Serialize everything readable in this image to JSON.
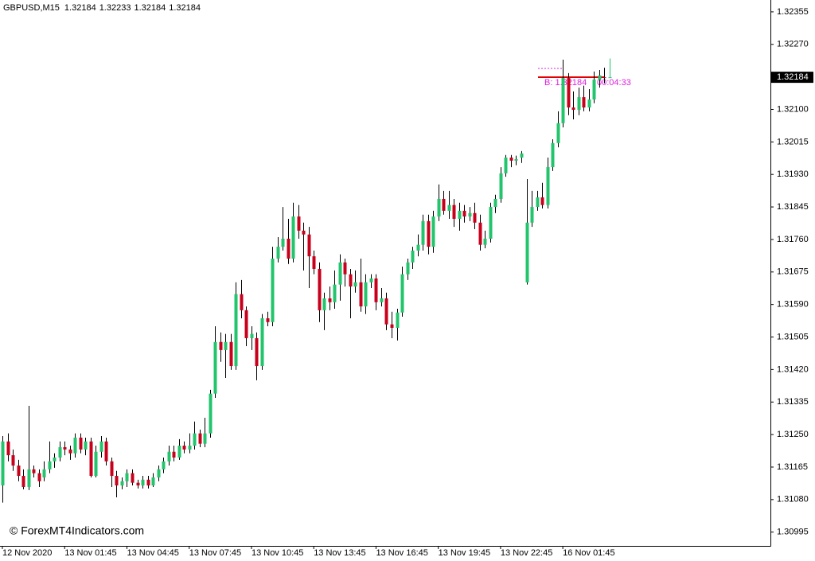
{
  "chart_data": {
    "type": "candlestick",
    "symbol": "GBPUSD,M15",
    "categories": [
      "12 Nov 2020",
      null,
      null,
      null,
      null,
      null,
      null,
      null,
      null,
      null,
      null,
      null,
      "13 Nov 01:45",
      null,
      null,
      null,
      null,
      null,
      null,
      null,
      null,
      null,
      null,
      null,
      "13 Nov 04:45",
      null,
      null,
      null,
      null,
      null,
      null,
      null,
      null,
      null,
      null,
      null,
      "13 Nov 07:45",
      null,
      null,
      null,
      null,
      null,
      null,
      null,
      null,
      null,
      null,
      null,
      "13 Nov 10:45",
      null,
      null,
      null,
      null,
      null,
      null,
      null,
      null,
      null,
      null,
      null,
      "13 Nov 13:45",
      null,
      null,
      null,
      null,
      null,
      null,
      null,
      null,
      null,
      null,
      null,
      "13 Nov 16:45",
      null,
      null,
      null,
      null,
      null,
      null,
      null,
      null,
      null,
      null,
      null,
      "13 Nov 19:45",
      null,
      null,
      null,
      null,
      null,
      null,
      null,
      null,
      null,
      null,
      null,
      "13 Nov 22:45",
      null,
      null,
      null,
      null,
      null,
      null,
      null,
      null,
      null,
      null,
      null,
      "16 Nov 01:45",
      null,
      null,
      null,
      null,
      null,
      null,
      null,
      null,
      null
    ],
    "open": [
      1.31117,
      1.31232,
      1.31196,
      1.31169,
      1.31142,
      1.31113,
      1.31159,
      1.31149,
      1.31138,
      1.31159,
      1.3118,
      1.3119,
      1.31217,
      1.31211,
      1.31201,
      1.31242,
      1.31211,
      1.31232,
      1.31142,
      1.31205,
      1.31232,
      1.3118,
      1.31142,
      1.31117,
      1.31128,
      1.31149,
      1.31124,
      1.31117,
      1.31132,
      1.31117,
      1.31138,
      1.31159,
      1.3118,
      1.31205,
      1.3119,
      1.31221,
      1.31211,
      1.31221,
      1.31253,
      1.31226,
      1.31253,
      1.31357,
      1.31492,
      1.31471,
      1.31492,
      1.31429,
      1.31617,
      1.31575,
      1.31502,
      1.31502,
      1.31429,
      1.31554,
      1.31544,
      1.3171,
      1.31741,
      1.31762,
      1.3171,
      1.3182,
      1.31783,
      1.31773,
      1.31716,
      1.31683,
      1.31575,
      1.31606,
      1.31596,
      1.31642,
      1.317,
      1.31669,
      1.31637,
      1.31648,
      1.31585,
      1.31648,
      1.31658,
      1.31596,
      1.31606,
      1.31538,
      1.31529,
      1.31569,
      1.31669,
      1.317,
      1.31731,
      1.31746,
      1.31808,
      1.31741,
      1.3182,
      1.31866,
      1.31835,
      1.3185,
      1.31814,
      1.31835,
      1.3182,
      1.31829,
      1.31804,
      1.31746,
      1.31762,
      1.31845,
      1.31866,
      1.31933,
      1.31974,
      1.31966,
      1.31974,
      1.31648,
      1.31804,
      1.31845,
      1.3187,
      1.3185,
      1.31949,
      1.32012,
      1.32064,
      1.32182,
      1.32105,
      1.32099,
      1.32132,
      1.32105,
      1.32126,
      1.32178,
      1.32184,
      1.32184
    ],
    "high": [
      1.31246,
      1.31253,
      1.31211,
      1.31184,
      1.31159,
      1.31325,
      1.31169,
      1.31159,
      1.3118,
      1.31232,
      1.31201,
      1.31232,
      1.31232,
      1.31221,
      1.31253,
      1.31253,
      1.31242,
      1.31242,
      1.31221,
      1.31246,
      1.31242,
      1.3119,
      1.31155,
      1.31138,
      1.31159,
      1.31159,
      1.31132,
      1.31142,
      1.31142,
      1.31149,
      1.31169,
      1.3119,
      1.31221,
      1.31221,
      1.31238,
      1.31232,
      1.31253,
      1.31284,
      1.31263,
      1.31294,
      1.31367,
      1.31533,
      1.31517,
      1.31513,
      1.31513,
      1.31648,
      1.31654,
      1.31585,
      1.31533,
      1.31517,
      1.31565,
      1.31571,
      1.31741,
      1.31766,
      1.31845,
      1.31814,
      1.31856,
      1.3185,
      1.31804,
      1.31793,
      1.31731,
      1.317,
      1.31621,
      1.31637,
      1.31679,
      1.31721,
      1.3171,
      1.31683,
      1.31679,
      1.3171,
      1.31669,
      1.31669,
      1.31669,
      1.31633,
      1.31621,
      1.31571,
      1.31579,
      1.31689,
      1.3171,
      1.31741,
      1.31773,
      1.31825,
      1.31825,
      1.31835,
      1.31904,
      1.31887,
      1.31887,
      1.31866,
      1.31856,
      1.3185,
      1.31845,
      1.31856,
      1.31825,
      1.31783,
      1.31856,
      1.31877,
      1.31949,
      1.31981,
      1.31981,
      1.31979,
      1.31991,
      1.31918,
      1.31887,
      1.31887,
      1.31908,
      1.31974,
      1.32022,
      1.32095,
      1.3223,
      1.32195,
      1.32147,
      1.32157,
      1.32162,
      1.32153,
      1.32199,
      1.32203,
      1.32209,
      1.32233
    ],
    "low": [
      1.31072,
      1.3118,
      1.31155,
      1.31128,
      1.31107,
      1.31105,
      1.31138,
      1.31113,
      1.31128,
      1.31149,
      1.31163,
      1.3118,
      1.31196,
      1.31184,
      1.3119,
      1.31201,
      1.31196,
      1.31138,
      1.31138,
      1.3119,
      1.31169,
      1.31113,
      1.31086,
      1.31107,
      1.31113,
      1.31117,
      1.31109,
      1.31109,
      1.31109,
      1.31113,
      1.31128,
      1.31149,
      1.31169,
      1.3118,
      1.31184,
      1.31201,
      1.31201,
      1.31211,
      1.31217,
      1.31217,
      1.31242,
      1.31346,
      1.3144,
      1.31398,
      1.31419,
      1.31419,
      1.31554,
      1.31481,
      1.31471,
      1.31392,
      1.31419,
      1.31533,
      1.31533,
      1.317,
      1.31731,
      1.31696,
      1.317,
      1.31762,
      1.31679,
      1.31633,
      1.31669,
      1.31544,
      1.31523,
      1.31575,
      1.31579,
      1.316,
      1.31637,
      1.31554,
      1.31621,
      1.31571,
      1.31565,
      1.31633,
      1.31575,
      1.31585,
      1.31523,
      1.31502,
      1.31496,
      1.31558,
      1.31654,
      1.31683,
      1.31716,
      1.31731,
      1.31721,
      1.31725,
      1.31808,
      1.31825,
      1.31814,
      1.31793,
      1.31783,
      1.31804,
      1.31808,
      1.31787,
      1.31731,
      1.31737,
      1.31752,
      1.31829,
      1.31856,
      1.31924,
      1.31949,
      1.31954,
      1.3196,
      1.31642,
      1.31793,
      1.31835,
      1.31841,
      1.31841,
      1.31939,
      1.32001,
      1.32053,
      1.32085,
      1.32074,
      1.32085,
      1.32095,
      1.32095,
      1.32116,
      1.32157,
      1.32168,
      1.32184
    ],
    "close": [
      1.31232,
      1.31196,
      1.31169,
      1.31142,
      1.31113,
      1.31159,
      1.31149,
      1.31128,
      1.31159,
      1.3118,
      1.3119,
      1.31217,
      1.31211,
      1.31201,
      1.31242,
      1.31211,
      1.31232,
      1.31142,
      1.31205,
      1.31232,
      1.3118,
      1.31142,
      1.31117,
      1.31128,
      1.31149,
      1.31124,
      1.31117,
      1.31132,
      1.31117,
      1.31138,
      1.31159,
      1.3118,
      1.31205,
      1.3119,
      1.31221,
      1.31211,
      1.31221,
      1.31253,
      1.31226,
      1.31253,
      1.31357,
      1.31492,
      1.31471,
      1.31492,
      1.31429,
      1.31617,
      1.31575,
      1.31502,
      1.31513,
      1.31429,
      1.31554,
      1.31544,
      1.3171,
      1.31741,
      1.31762,
      1.3171,
      1.3182,
      1.31783,
      1.31773,
      1.31716,
      1.31683,
      1.31575,
      1.31606,
      1.31596,
      1.31642,
      1.317,
      1.31669,
      1.31637,
      1.31648,
      1.31585,
      1.31648,
      1.31658,
      1.31596,
      1.31606,
      1.31538,
      1.31529,
      1.31569,
      1.31669,
      1.317,
      1.31731,
      1.31746,
      1.31808,
      1.31741,
      1.3182,
      1.31866,
      1.31835,
      1.3185,
      1.31814,
      1.31835,
      1.3182,
      1.31829,
      1.31804,
      1.31746,
      1.31762,
      1.31845,
      1.31866,
      1.31933,
      1.31974,
      1.31966,
      1.3197,
      1.31985,
      1.31804,
      1.31845,
      1.3187,
      1.3185,
      1.31949,
      1.32012,
      1.32064,
      1.32182,
      1.32105,
      1.32099,
      1.32132,
      1.32105,
      1.32126,
      1.32178,
      1.32189,
      1.32182,
      1.32184
    ],
    "up_color": "#22c46c",
    "down_color": "#c8001c",
    "ylim": [
      1.30959,
      1.32386
    ],
    "yticks": [
      1.32355,
      {
        "value": 1.3227,
        "label": "1.32270"
      },
      {
        "value": 1.321,
        "label": "1.32100"
      },
      1.32015,
      {
        "value": 1.3193,
        "label": "1.31930"
      },
      1.31845,
      {
        "value": 1.3176,
        "label": "1.31760"
      },
      1.31675,
      {
        "value": 1.3159,
        "label": "1.31590"
      },
      1.31505,
      {
        "value": 1.3142,
        "label": "1.31420"
      },
      1.31335,
      {
        "value": 1.3125,
        "label": "1.31250"
      },
      1.31165,
      {
        "value": 1.3108,
        "label": "1.31080"
      },
      1.30995
    ],
    "annotations": {
      "bid": "B: 1.32184",
      "timer": "00:04:33",
      "copyright": "© ForexMT4Indicators.com"
    }
  }
}
